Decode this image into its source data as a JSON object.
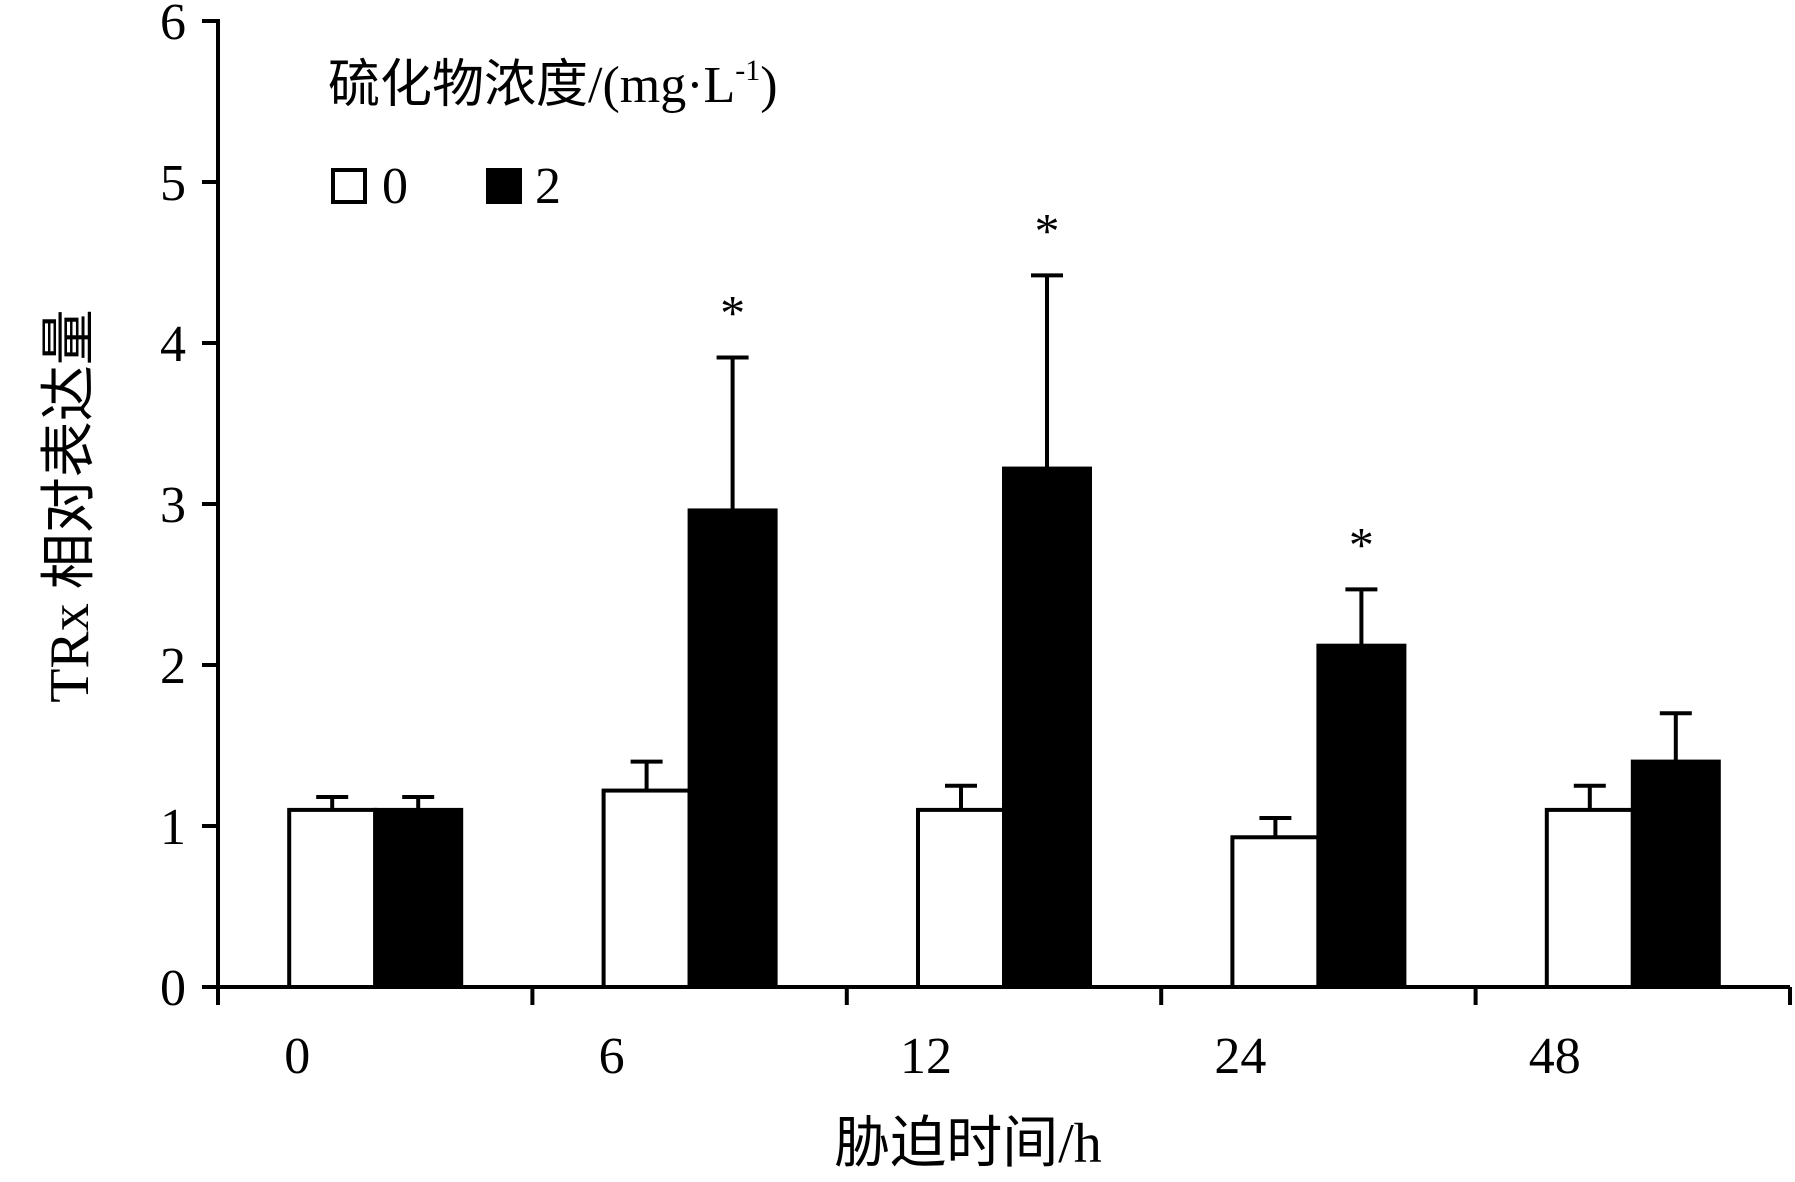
{
  "chart_data": {
    "type": "bar",
    "title": "",
    "xlabel": "胁迫时间/h",
    "ylabel": "TRx 相对表达量",
    "categories": [
      "0",
      "6",
      "12",
      "24",
      "48"
    ],
    "ylim": [
      0,
      6
    ],
    "yticks": [
      "0",
      "1",
      "2",
      "3",
      "4",
      "5",
      "6"
    ],
    "legend": {
      "title_main": "硫化物浓度/(mg·L",
      "title_sup": "-1",
      "title_close": ")",
      "placement": "top-left"
    },
    "series": [
      {
        "name": "0",
        "fill": "#ffffff",
        "values": [
          1.1,
          1.22,
          1.1,
          0.93,
          1.1
        ],
        "errors": [
          0.08,
          0.18,
          0.15,
          0.12,
          0.15
        ]
      },
      {
        "name": "2",
        "fill": "#000000",
        "values": [
          1.1,
          2.96,
          3.22,
          2.12,
          1.4
        ],
        "errors": [
          0.08,
          0.95,
          1.2,
          0.35,
          0.3
        ]
      }
    ],
    "significance": [
      "",
      "*",
      "*",
      "*",
      ""
    ]
  }
}
